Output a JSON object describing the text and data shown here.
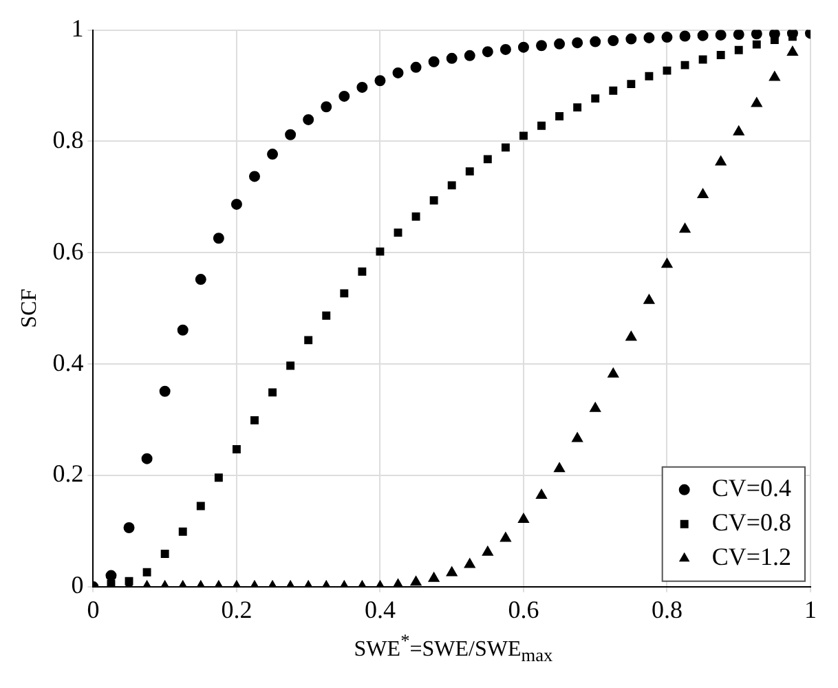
{
  "chart_data": {
    "type": "scatter",
    "xlabel": "SWE$^{*}$=SWE/SWE$_{max}$",
    "ylabel": "SCF",
    "x": [
      0,
      0.025,
      0.05,
      0.075,
      0.1,
      0.125,
      0.15,
      0.175,
      0.2,
      0.225,
      0.25,
      0.275,
      0.3,
      0.325,
      0.35,
      0.375,
      0.4,
      0.425,
      0.45,
      0.475,
      0.5,
      0.525,
      0.55,
      0.575,
      0.6,
      0.625,
      0.65,
      0.675,
      0.7,
      0.725,
      0.75,
      0.775,
      0.8,
      0.825,
      0.85,
      0.875,
      0.9,
      0.925,
      0.95,
      0.975,
      1
    ],
    "series": [
      {
        "name": "CV=0.4",
        "color": "#000000",
        "marker": "circle",
        "values": [
          0,
          0.02,
          0.106,
          0.23,
          0.351,
          0.461,
          0.552,
          0.626,
          0.687,
          0.737,
          0.777,
          0.812,
          0.839,
          0.862,
          0.881,
          0.897,
          0.909,
          0.923,
          0.933,
          0.943,
          0.949,
          0.954,
          0.961,
          0.965,
          0.969,
          0.972,
          0.975,
          0.977,
          0.979,
          0.981,
          0.984,
          0.986,
          0.987,
          0.989,
          0.99,
          0.991,
          0.992,
          0.993,
          0.993,
          0.994,
          0.994
        ]
      },
      {
        "name": "CV=0.8",
        "color": "#000000",
        "marker": "square",
        "values": [
          null,
          0.005,
          0.01,
          0.026,
          0.059,
          0.099,
          0.145,
          0.196,
          0.247,
          0.299,
          0.349,
          0.397,
          0.443,
          0.487,
          0.527,
          0.566,
          0.602,
          0.636,
          0.665,
          0.694,
          0.721,
          0.746,
          0.768,
          0.789,
          0.81,
          0.828,
          0.845,
          0.861,
          0.877,
          0.891,
          0.903,
          0.917,
          0.927,
          0.937,
          0.947,
          0.955,
          0.964,
          0.974,
          0.982,
          0.988,
          null
        ]
      },
      {
        "name": "CV=1.2",
        "color": "#000000",
        "marker": "triangle",
        "values": [
          null,
          null,
          0,
          0,
          0,
          0,
          0,
          0,
          0,
          0,
          0,
          0,
          0,
          0,
          0,
          0,
          0,
          0.003,
          0.008,
          0.015,
          0.025,
          0.04,
          0.062,
          0.087,
          0.121,
          0.164,
          0.212,
          0.266,
          0.32,
          0.382,
          0.448,
          0.514,
          0.579,
          0.642,
          0.704,
          0.763,
          0.817,
          0.868,
          0.915,
          0.96,
          null
        ]
      }
    ],
    "xlim": [
      0,
      1
    ],
    "xticks": [
      0,
      0.2,
      0.4,
      0.6,
      0.8,
      1
    ],
    "ylim": [
      0,
      1
    ],
    "yticks": [
      0,
      0.2,
      0.4,
      0.6,
      0.8,
      1
    ],
    "grid": true,
    "legend": "bottom right"
  }
}
